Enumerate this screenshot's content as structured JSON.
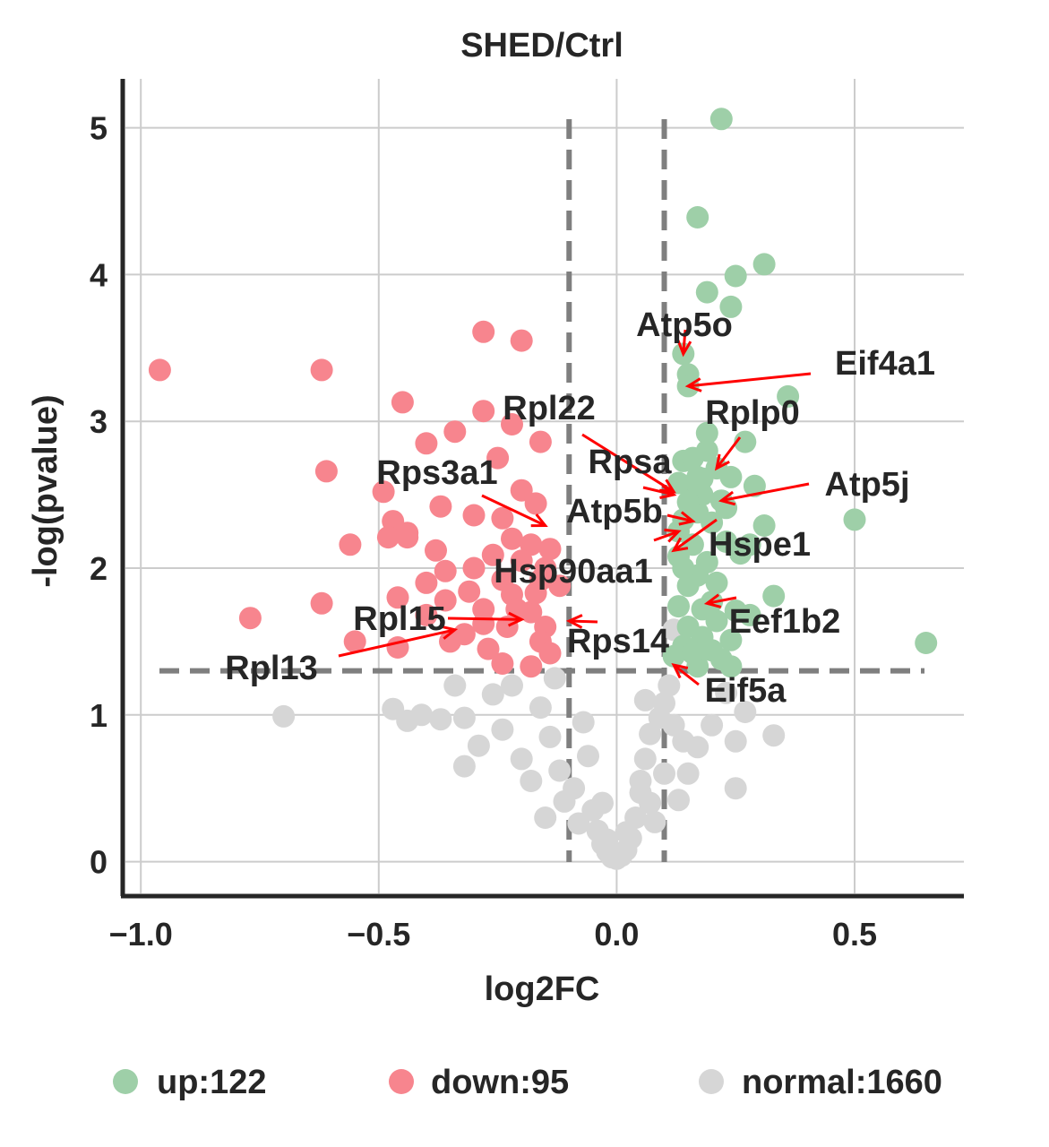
{
  "chart_data": {
    "type": "scatter",
    "title": "SHED/Ctrl",
    "xlabel": "log2FC",
    "ylabel": "-log(pvalue)",
    "xlim": [
      -1.05,
      0.73
    ],
    "ylim": [
      -0.22,
      5.33
    ],
    "x_ticks": [
      -1.0,
      -0.5,
      0.0,
      0.5
    ],
    "x_tick_labels": [
      "−1.0",
      "−0.5",
      "0.0",
      "0.5"
    ],
    "y_ticks": [
      0,
      1,
      2,
      3,
      4,
      5
    ],
    "y_tick_labels": [
      "0",
      "1",
      "2",
      "3",
      "4",
      "5"
    ],
    "grid": true,
    "thresholds": {
      "log2fc": [
        -0.1,
        0.1
      ],
      "neg_log_pvalue": 1.3
    },
    "colors": {
      "up": "#9ecfa8",
      "down": "#f7858e",
      "normal": "#d6d6d6",
      "threshold": "#7f7f7f",
      "arrow": "#ff0000",
      "text": "#262626"
    },
    "legend": {
      "position": "bottom",
      "entries": [
        {
          "label": "up:122",
          "color": "#9ecfa8"
        },
        {
          "label": "down:95",
          "color": "#f7858e"
        },
        {
          "label": "normal:1660",
          "color": "#d6d6d6"
        }
      ]
    },
    "series": [
      {
        "group": "up",
        "color": "#9ecfa8",
        "points": [
          [
            0.22,
            5.06
          ],
          [
            0.17,
            4.39
          ],
          [
            0.31,
            4.07
          ],
          [
            0.25,
            3.99
          ],
          [
            0.19,
            3.88
          ],
          [
            0.24,
            3.78
          ],
          [
            0.14,
            3.46
          ],
          [
            0.15,
            3.32
          ],
          [
            0.15,
            3.24
          ],
          [
            0.36,
            3.17
          ],
          [
            0.27,
            2.86
          ],
          [
            0.19,
            2.92
          ],
          [
            0.19,
            2.8
          ],
          [
            0.14,
            2.73
          ],
          [
            0.16,
            2.75
          ],
          [
            0.21,
            2.68
          ],
          [
            0.24,
            2.62
          ],
          [
            0.18,
            2.61
          ],
          [
            0.29,
            2.56
          ],
          [
            0.16,
            2.52
          ],
          [
            0.13,
            2.58
          ],
          [
            0.22,
            2.46
          ],
          [
            0.17,
            2.38
          ],
          [
            0.14,
            2.33
          ],
          [
            0.31,
            2.29
          ],
          [
            0.2,
            2.31
          ],
          [
            0.5,
            2.33
          ],
          [
            0.23,
            2.18
          ],
          [
            0.16,
            2.16
          ],
          [
            0.28,
            2.16
          ],
          [
            0.13,
            2.08
          ],
          [
            0.19,
            2.04
          ],
          [
            0.17,
            1.95
          ],
          [
            0.21,
            1.9
          ],
          [
            0.15,
            1.88
          ],
          [
            0.33,
            1.81
          ],
          [
            0.13,
            1.74
          ],
          [
            0.18,
            1.72
          ],
          [
            0.25,
            1.71
          ],
          [
            0.28,
            1.68
          ],
          [
            0.21,
            1.64
          ],
          [
            0.15,
            1.6
          ],
          [
            0.18,
            1.53
          ],
          [
            0.24,
            1.51
          ],
          [
            0.14,
            1.47
          ],
          [
            0.2,
            1.44
          ],
          [
            0.12,
            1.4
          ],
          [
            0.22,
            1.38
          ],
          [
            0.65,
            1.49
          ],
          [
            0.17,
            1.33
          ],
          [
            0.24,
            1.33
          ],
          [
            0.16,
            1.42
          ],
          [
            0.2,
            1.77
          ],
          [
            0.14,
            2.0
          ],
          [
            0.23,
            2.41
          ],
          [
            0.18,
            2.5
          ],
          [
            0.13,
            2.25
          ],
          [
            0.17,
            2.62
          ],
          [
            0.26,
            2.1
          ],
          [
            0.15,
            2.45
          ]
        ]
      },
      {
        "group": "down",
        "color": "#f7858e",
        "points": [
          [
            -0.96,
            3.35
          ],
          [
            -0.62,
            3.35
          ],
          [
            -0.28,
            3.61
          ],
          [
            -0.2,
            3.55
          ],
          [
            -0.45,
            3.13
          ],
          [
            -0.28,
            3.07
          ],
          [
            -0.22,
            2.98
          ],
          [
            -0.34,
            2.93
          ],
          [
            -0.16,
            2.86
          ],
          [
            -0.4,
            2.85
          ],
          [
            -0.25,
            2.75
          ],
          [
            -0.61,
            2.66
          ],
          [
            -0.49,
            2.52
          ],
          [
            -0.2,
            2.53
          ],
          [
            -0.17,
            2.44
          ],
          [
            -0.37,
            2.42
          ],
          [
            -0.3,
            2.36
          ],
          [
            -0.24,
            2.34
          ],
          [
            -0.47,
            2.32
          ],
          [
            -0.44,
            2.24
          ],
          [
            -0.48,
            2.21
          ],
          [
            -0.44,
            2.21
          ],
          [
            -0.56,
            2.16
          ],
          [
            -0.22,
            2.2
          ],
          [
            -0.18,
            2.16
          ],
          [
            -0.14,
            2.13
          ],
          [
            -0.26,
            2.09
          ],
          [
            -0.2,
            2.05
          ],
          [
            -0.15,
            2.0
          ],
          [
            -0.36,
            1.98
          ],
          [
            -0.4,
            1.9
          ],
          [
            -0.24,
            1.92
          ],
          [
            -0.16,
            1.92
          ],
          [
            -0.31,
            1.84
          ],
          [
            -0.22,
            1.82
          ],
          [
            -0.46,
            1.8
          ],
          [
            -0.62,
            1.76
          ],
          [
            -0.36,
            1.78
          ],
          [
            -0.28,
            1.72
          ],
          [
            -0.18,
            1.7
          ],
          [
            -0.77,
            1.66
          ],
          [
            -0.4,
            1.68
          ],
          [
            -0.23,
            1.6
          ],
          [
            -0.15,
            1.6
          ],
          [
            -0.32,
            1.55
          ],
          [
            -0.55,
            1.5
          ],
          [
            -0.46,
            1.46
          ],
          [
            -0.35,
            1.5
          ],
          [
            -0.27,
            1.45
          ],
          [
            -0.16,
            1.5
          ],
          [
            -0.24,
            1.35
          ],
          [
            -0.18,
            1.33
          ],
          [
            -0.14,
            1.42
          ],
          [
            -0.28,
            1.62
          ],
          [
            -0.21,
            1.72
          ],
          [
            -0.17,
            1.83
          ],
          [
            -0.12,
            1.88
          ],
          [
            -0.38,
            2.12
          ],
          [
            -0.3,
            2.0
          ]
        ]
      },
      {
        "group": "normal",
        "color": "#d6d6d6",
        "points": [
          [
            -0.7,
            0.99
          ],
          [
            -0.47,
            1.04
          ],
          [
            -0.44,
            0.96
          ],
          [
            -0.41,
            1.0
          ],
          [
            -0.37,
            0.97
          ],
          [
            -0.32,
            0.98
          ],
          [
            -0.34,
            1.2
          ],
          [
            -0.26,
            1.14
          ],
          [
            -0.29,
            0.79
          ],
          [
            -0.32,
            0.65
          ],
          [
            -0.24,
            0.9
          ],
          [
            -0.2,
            0.7
          ],
          [
            -0.18,
            0.55
          ],
          [
            -0.16,
            1.05
          ],
          [
            -0.14,
            0.85
          ],
          [
            -0.12,
            0.62
          ],
          [
            -0.09,
            0.5
          ],
          [
            -0.07,
            0.95
          ],
          [
            -0.05,
            0.35
          ],
          [
            -0.04,
            0.21
          ],
          [
            -0.03,
            0.12
          ],
          [
            -0.02,
            0.07
          ],
          [
            -0.01,
            0.03
          ],
          [
            0.0,
            0.02
          ],
          [
            0.01,
            0.04
          ],
          [
            0.02,
            0.08
          ],
          [
            0.03,
            0.16
          ],
          [
            0.04,
            0.3
          ],
          [
            0.05,
            0.47
          ],
          [
            0.06,
            0.7
          ],
          [
            0.07,
            0.87
          ],
          [
            0.09,
            0.98
          ],
          [
            0.1,
            1.08
          ],
          [
            0.12,
            0.93
          ],
          [
            0.14,
            0.82
          ],
          [
            0.17,
            0.78
          ],
          [
            0.2,
            0.93
          ],
          [
            0.23,
            1.15
          ],
          [
            0.25,
            0.82
          ],
          [
            0.27,
            1.02
          ],
          [
            0.33,
            0.86
          ],
          [
            0.25,
            0.5
          ],
          [
            0.1,
            0.6
          ],
          [
            0.13,
            0.42
          ],
          [
            0.08,
            0.27
          ],
          [
            -0.08,
            0.26
          ],
          [
            -0.11,
            0.41
          ],
          [
            -0.06,
            0.72
          ],
          [
            -0.02,
            0.15
          ],
          [
            0.02,
            0.2
          ],
          [
            0.05,
            0.55
          ],
          [
            0.11,
            1.2
          ],
          [
            -0.22,
            1.2
          ],
          [
            -0.13,
            1.25
          ],
          [
            0.06,
            1.1
          ],
          [
            0.12,
            1.58
          ],
          [
            0.15,
            0.6
          ],
          [
            0.07,
            0.4
          ],
          [
            -0.15,
            0.3
          ],
          [
            -0.03,
            0.4
          ]
        ]
      }
    ],
    "annotations": [
      {
        "label": "Atp5o",
        "point": [
          0.14,
          3.46
        ]
      },
      {
        "label": "Eif4a1",
        "point": [
          0.15,
          3.24
        ]
      },
      {
        "label": "Rplp0",
        "point": [
          0.21,
          2.68
        ]
      },
      {
        "label": "Rpl22",
        "point": [
          0.12,
          2.52
        ]
      },
      {
        "label": "Rpsa",
        "point": [
          0.12,
          2.5
        ]
      },
      {
        "label": "Atp5j",
        "point": [
          0.22,
          2.46
        ]
      },
      {
        "label": "Rps3a1",
        "point": [
          -0.15,
          2.29
        ]
      },
      {
        "label": "Atp5b",
        "point": [
          0.16,
          2.32
        ]
      },
      {
        "label": "Hspe1",
        "point": [
          0.12,
          2.12
        ]
      },
      {
        "label": "Hsp90aa1",
        "point": [
          0.13,
          2.25
        ]
      },
      {
        "label": "Rpl15",
        "point": [
          -0.2,
          1.65
        ]
      },
      {
        "label": "Eef1b2",
        "point": [
          0.19,
          1.76
        ]
      },
      {
        "label": "Rps14",
        "point": [
          -0.1,
          1.64
        ]
      },
      {
        "label": "Rpl13",
        "point": [
          -0.34,
          1.58
        ]
      },
      {
        "label": "Eif5a",
        "point": [
          0.12,
          1.34
        ]
      }
    ]
  }
}
